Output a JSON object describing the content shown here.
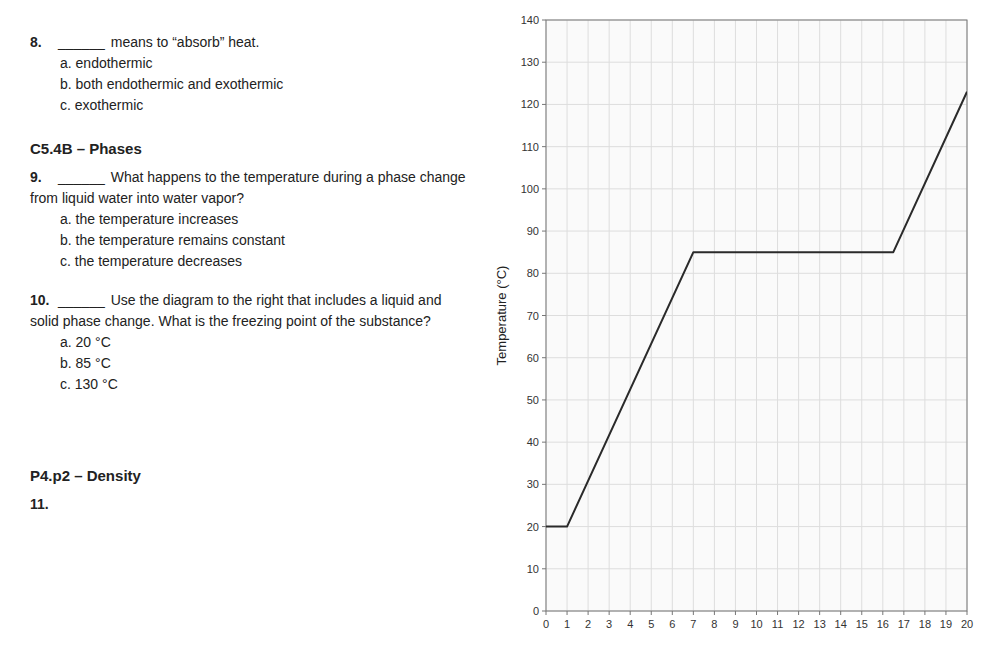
{
  "chart_data": {
    "type": "line",
    "annotations": [
      "8.",
      "______",
      "means to “absorb” heat.",
      "a. endothermic",
      "b. both endothermic and exothermic",
      "c. exothermic",
      "C5.4B – Phases",
      "9.",
      "______",
      "What happens to the temperature during a phase change from liquid water into water vapor?",
      "a. the temperature increases",
      "b. the temperature remains constant",
      "c. the temperature decreases",
      "10.",
      "______",
      "Use the diagram to the right that",
      "includes a liquid and solid phase change. What",
      "is the freezing point of the substance?",
      "a. 20 °C",
      "b. 85 °C",
      "c. 130 °C",
      "P4.p2 – Density",
      "11."
    ],
    "y_label": "Temperature (°C)",
    "x": [
      0,
      1,
      7,
      7.5,
      16,
      16.5,
      20
    ],
    "values": [
      20,
      20,
      85,
      85,
      85,
      85,
      123
    ],
    "color": "#2a2a2a",
    "xlim": [
      0,
      20
    ],
    "ylim": [
      0,
      140
    ],
    "xticks": [
      0,
      1,
      2,
      3,
      4,
      5,
      6,
      7,
      8,
      9,
      10,
      11,
      12,
      13,
      14,
      15,
      16,
      17,
      18,
      19,
      20
    ],
    "yticks": [
      0,
      10,
      20,
      30,
      40,
      50,
      60,
      70,
      80,
      90,
      100,
      110,
      120,
      130,
      140
    ],
    "grid": true
  }
}
